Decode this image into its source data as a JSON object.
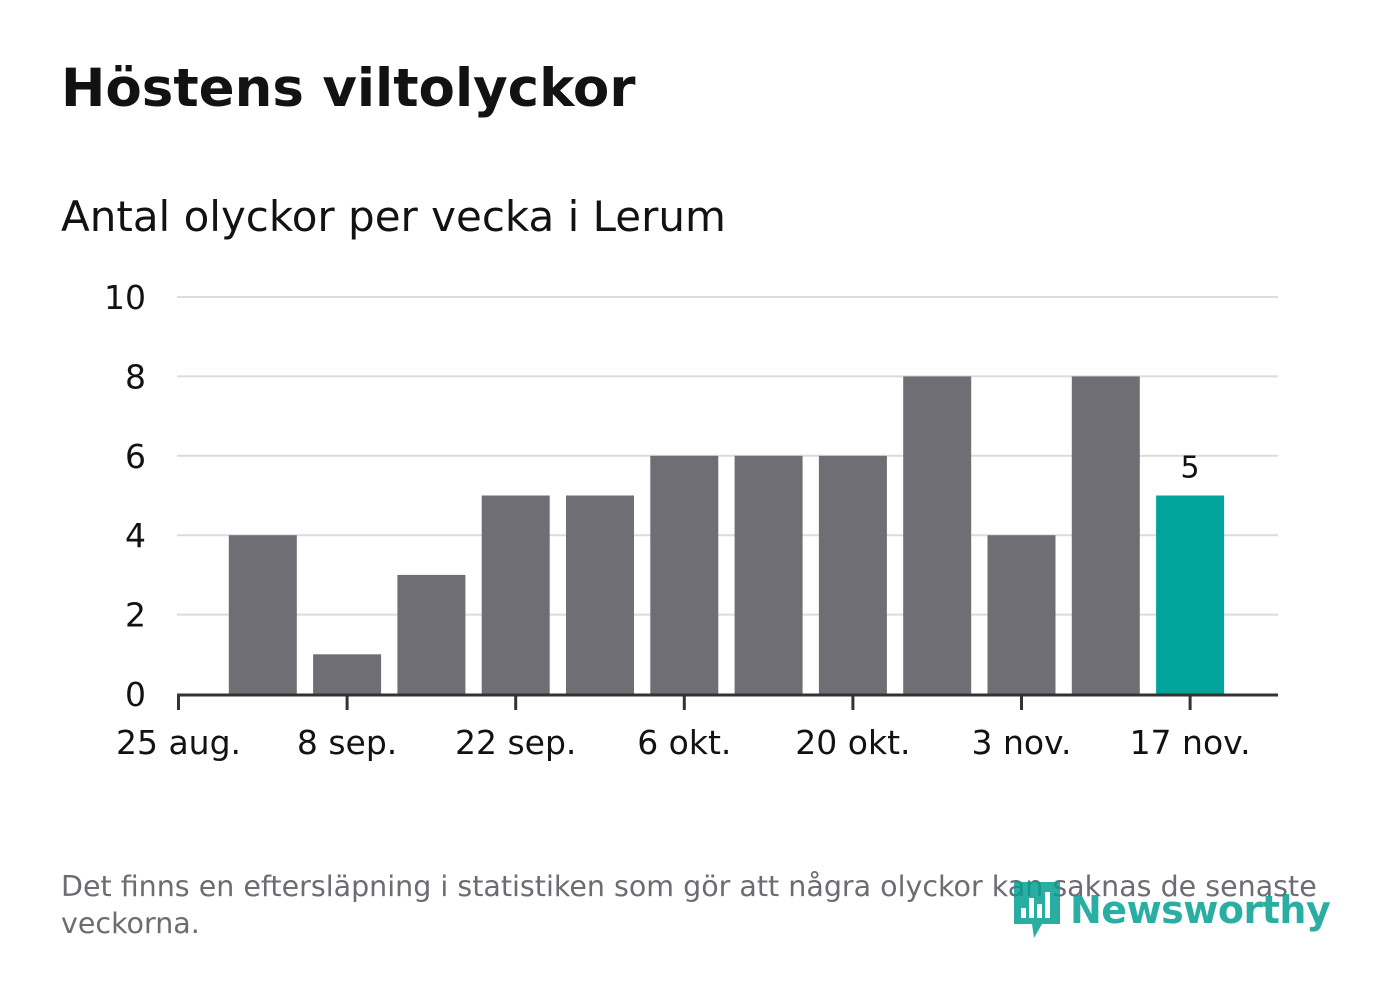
{
  "chart_data": {
    "type": "bar",
    "title": "Höstens viltolyckor",
    "subtitle": "Antal olyckor per vecka i Lerum",
    "xlabel": "",
    "ylabel": "",
    "ylim": [
      0,
      10
    ],
    "yticks": [
      "0",
      "2",
      "4",
      "6",
      "8",
      "10"
    ],
    "grid": true,
    "values": [
      4,
      1,
      3,
      5,
      5,
      6,
      6,
      6,
      8,
      4,
      8,
      5
    ],
    "xtick_labels": [
      "25 aug.",
      "8 sep.",
      "22 sep.",
      "6 okt.",
      "20 okt.",
      "3 nov.",
      "17 nov."
    ],
    "highlight_index": 11,
    "highlight_label": "5",
    "colors": {
      "bar": "#6f6e74",
      "highlight": "#00a49b",
      "grid": "#dcdcdc",
      "axis": "#333333",
      "text": "#121212"
    }
  },
  "note": "Det finns en eftersläpning i statistiken som gör att några olyckor kan saknas de senaste veckorna.",
  "logo": {
    "text": "Newsworthy",
    "icon": "newsworthy-logo-icon",
    "color": "#05a094"
  }
}
